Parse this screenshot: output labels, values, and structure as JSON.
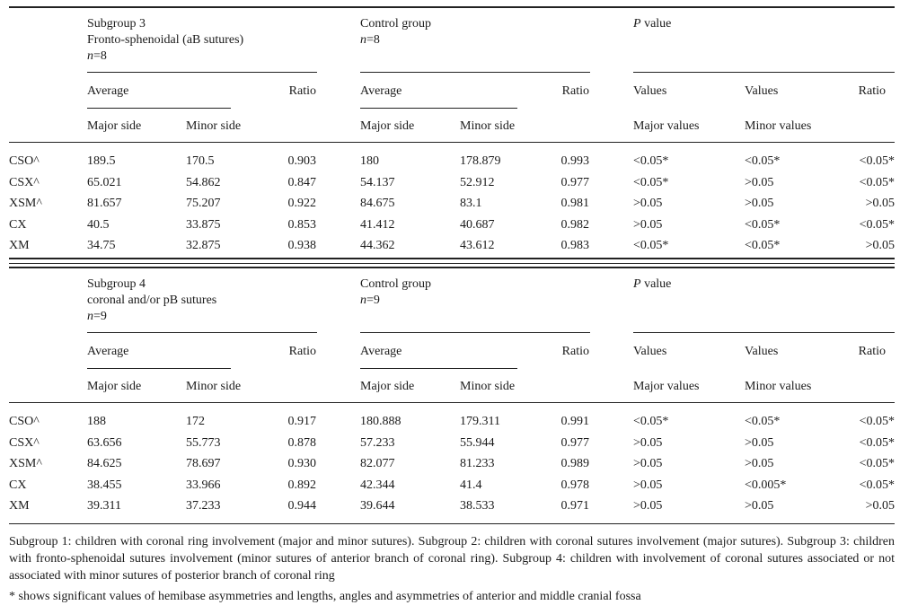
{
  "table1": {
    "subgroup": {
      "title": "Subgroup 3",
      "subtitle": "Fronto-sphenoidal (aB sutures)",
      "n_label": "n",
      "n_value": "=8"
    },
    "control": {
      "title": "Control group",
      "n_label": "n",
      "n_value": "=8"
    },
    "pvalue": {
      "p": "P",
      "label": " value"
    },
    "headers": {
      "average": "Average",
      "ratio": "Ratio",
      "major_side": "Major side",
      "minor_side": "Minor side",
      "values": "Values",
      "major_values": "Major values",
      "minor_values": "Minor values"
    },
    "rows": [
      [
        "CSO^",
        "189.5",
        "170.5",
        "0.903",
        "180",
        "178.879",
        "0.993",
        "<0.05*",
        "<0.05*",
        "<0.05*"
      ],
      [
        "CSX^",
        "65.021",
        "54.862",
        "0.847",
        "54.137",
        "52.912",
        "0.977",
        "<0.05*",
        ">0.05",
        "<0.05*"
      ],
      [
        "XSM^",
        "81.657",
        "75.207",
        "0.922",
        "84.675",
        "83.1",
        "0.981",
        ">0.05",
        ">0.05",
        ">0.05"
      ],
      [
        "CX",
        "40.5",
        "33.875",
        "0.853",
        "41.412",
        "40.687",
        "0.982",
        ">0.05",
        "<0.05*",
        "<0.05*"
      ],
      [
        "XM",
        "34.75",
        "32.875",
        "0.938",
        "44.362",
        "43.612",
        "0.983",
        "<0.05*",
        "<0.05*",
        ">0.05"
      ]
    ]
  },
  "table2": {
    "subgroup": {
      "title": "Subgroup 4",
      "subtitle": "coronal and/or pB sutures",
      "n_label": "n",
      "n_value": "=9"
    },
    "control": {
      "title": "Control group",
      "n_label": "n",
      "n_value": "=9"
    },
    "pvalue": {
      "p": "P",
      "label": " value"
    },
    "headers": {
      "average": "Average",
      "ratio": "Ratio",
      "major_side": "Major side",
      "minor_side": "Minor side",
      "values": "Values",
      "major_values": "Major values",
      "minor_values": "Minor values"
    },
    "rows": [
      [
        "CSO^",
        "188",
        "172",
        "0.917",
        "180.888",
        "179.311",
        "0.991",
        "<0.05*",
        "<0.05*",
        "<0.05*"
      ],
      [
        "CSX^",
        "63.656",
        "55.773",
        "0.878",
        "57.233",
        "55.944",
        "0.977",
        ">0.05",
        ">0.05",
        "<0.05*"
      ],
      [
        "XSM^",
        "84.625",
        "78.697",
        "0.930",
        "82.077",
        "81.233",
        "0.989",
        ">0.05",
        ">0.05",
        "<0.05*"
      ],
      [
        "CX",
        "38.455",
        "33.966",
        "0.892",
        "42.344",
        "41.4",
        "0.978",
        ">0.05",
        "<0.005*",
        "<0.05*"
      ],
      [
        "XM",
        "39.311",
        "37.233",
        "0.944",
        "39.644",
        "38.533",
        "0.971",
        ">0.05",
        ">0.05",
        ">0.05"
      ]
    ]
  },
  "footnote": {
    "line1": "Subgroup 1: children with coronal ring involvement (major and minor sutures). Subgroup 2: children with coronal sutures involvement (major sutures). Subgroup 3: children with fronto-sphenoidal sutures involvement (minor sutures of anterior branch of coronal ring). Subgroup 4: children with involvement of coronal sutures associated or not associated with minor sutures of posterior branch of coronal ring",
    "line2": "* shows significant values of hemibase asymmetries and lengths, angles and asymmetries of anterior and middle cranial fossa"
  }
}
